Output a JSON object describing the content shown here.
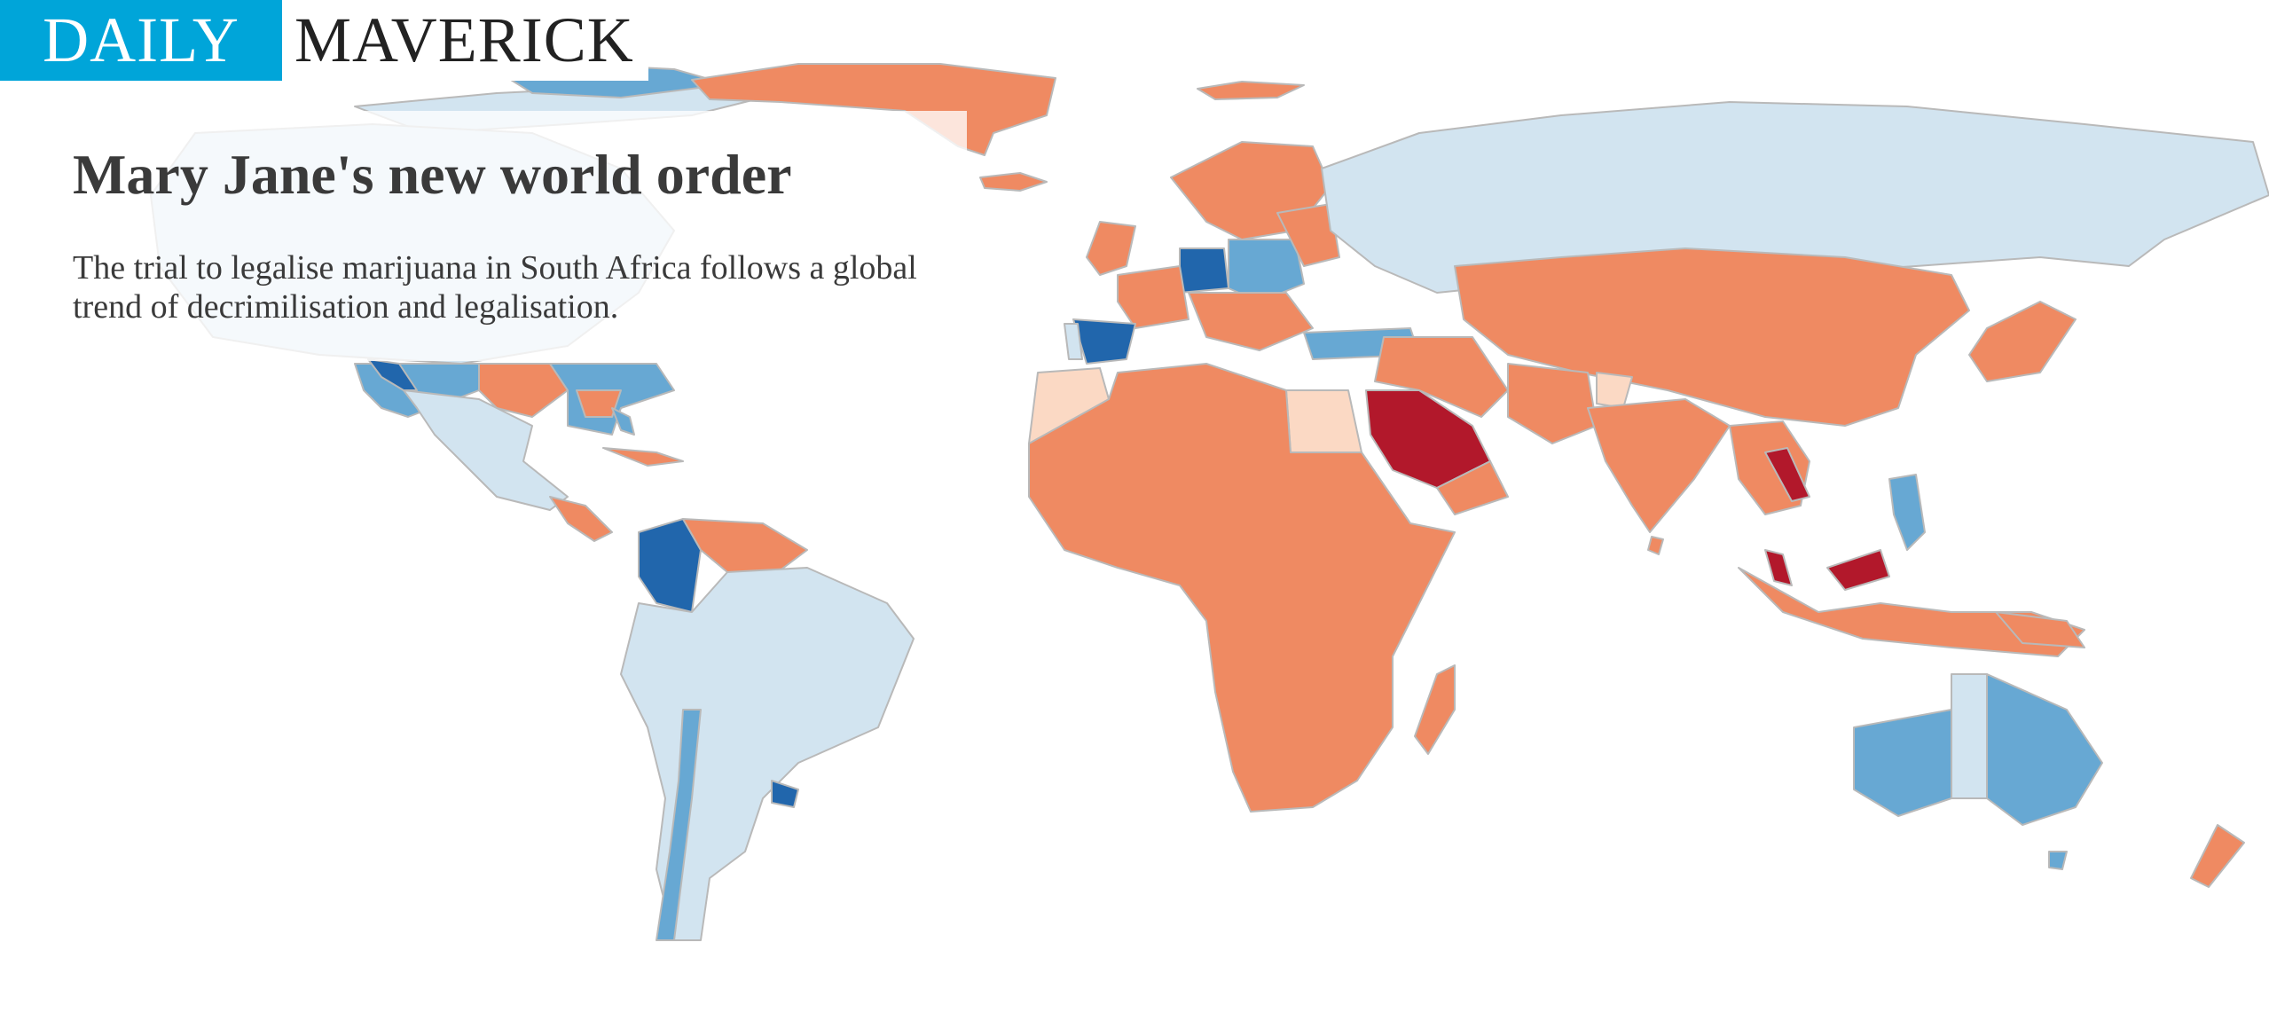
{
  "brand": {
    "part1": "DAILY",
    "part2": "MAVERICK"
  },
  "header": {
    "title": "Mary Jane's new world order",
    "subtitle": "The trial to legalise marijuana in South Africa follows a global trend of decrimilisation and legalisation."
  },
  "map": {
    "type": "choropleth",
    "colors": {
      "very_light_blue": "#d2e4f0",
      "medium_blue": "#67a8d3",
      "dark_blue": "#2166ac",
      "light_peach": "#fbd9c4",
      "orange": "#ef8a62",
      "dark_red": "#b2182b"
    }
  }
}
